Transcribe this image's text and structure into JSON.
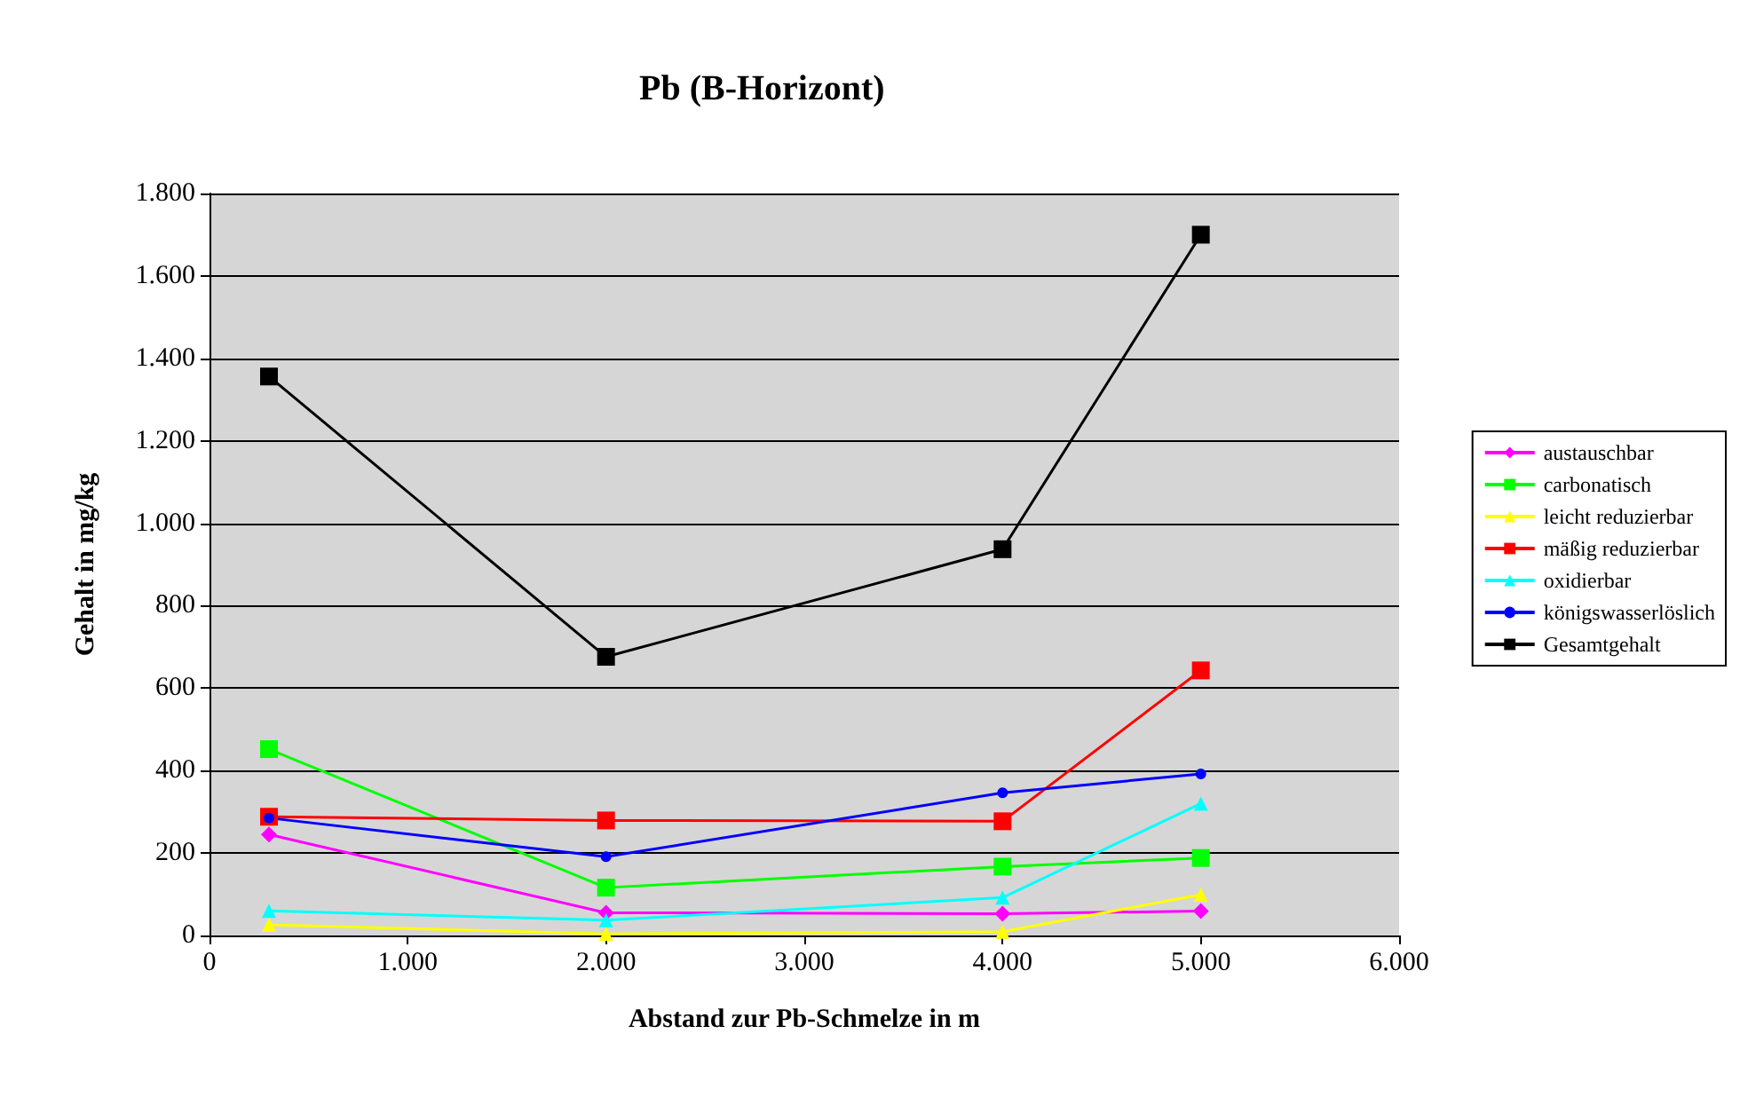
{
  "chart_data": {
    "type": "line",
    "title": "Pb (B-Horizont)",
    "xlabel": "Abstand zur Pb-Schmelze in m",
    "ylabel": "Gehalt in mg/kg",
    "x": [
      300,
      2000,
      4000,
      5000
    ],
    "series": [
      {
        "name": "austauschbar",
        "color": "#ff00ff",
        "marker": "diamond",
        "values": [
          245,
          55,
          53,
          59
        ]
      },
      {
        "name": "carbonatisch",
        "color": "#00ff00",
        "marker": "square",
        "values": [
          452,
          116,
          167,
          188
        ]
      },
      {
        "name": "leicht reduzierbar",
        "color": "#ffff00",
        "marker": "triangle",
        "values": [
          26,
          4,
          9,
          99
        ]
      },
      {
        "name": "mäßig reduzierbar",
        "color": "#ff0000",
        "marker": "square",
        "values": [
          288,
          279,
          277,
          643
        ]
      },
      {
        "name": "oxidierbar",
        "color": "#00ffff",
        "marker": "triangle",
        "values": [
          60,
          37,
          92,
          320
        ]
      },
      {
        "name": "königswasserlöslich",
        "color": "#0000ff",
        "marker": "circle",
        "values": [
          285,
          191,
          346,
          392
        ]
      },
      {
        "name": "Gesamtgehalt",
        "color": "#000000",
        "marker": "square",
        "values": [
          1356,
          676,
          937,
          1700
        ]
      }
    ],
    "xlim": [
      0,
      6000
    ],
    "xticks": [
      0,
      {
        "value": 1000,
        "label": "1.000"
      },
      {
        "value": 2000,
        "label": "2.000"
      },
      {
        "value": 3000,
        "label": "3.000"
      },
      {
        "value": 4000,
        "label": "4.000"
      },
      {
        "value": 5000,
        "label": "5.000"
      },
      {
        "value": 6000,
        "label": "6.000"
      }
    ],
    "ylim": [
      0,
      1800
    ],
    "yticks": [
      0,
      200,
      400,
      600,
      800,
      {
        "value": 1000,
        "label": "1.000"
      },
      {
        "value": 1200,
        "label": "1.200"
      },
      {
        "value": 1400,
        "label": "1.400"
      },
      {
        "value": 1600,
        "label": "1.600"
      },
      {
        "value": 1800,
        "label": "1.800"
      }
    ],
    "grid": "y",
    "legend": "right",
    "line_style": "solid"
  }
}
